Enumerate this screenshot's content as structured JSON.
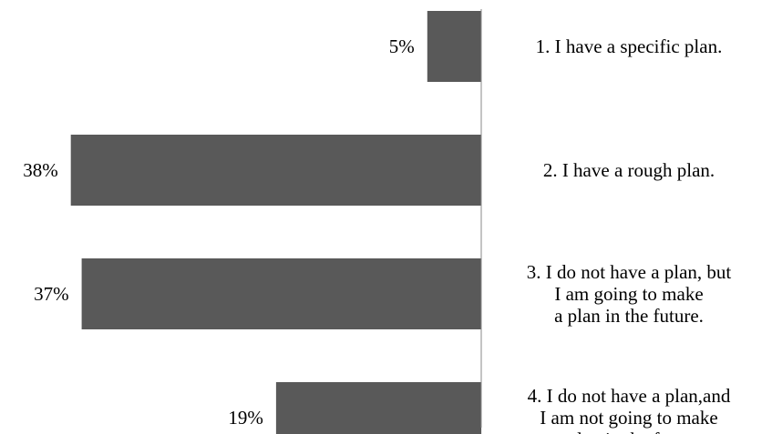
{
  "chart_data": {
    "type": "bar",
    "orientation": "horizontal",
    "categories": [
      [
        "1. I have a specific plan."
      ],
      [
        "2. I have a rough plan."
      ],
      [
        "3. I do not have a plan, but",
        "I am going to make",
        "a plan in the future."
      ],
      [
        "4. I do not have a plan,and",
        "I am not going to make",
        "a plan in the future."
      ]
    ],
    "values": [
      5,
      38,
      37,
      19
    ],
    "value_labels": [
      "5%",
      "38%",
      "37%",
      "19%"
    ],
    "unit": "%",
    "title": "",
    "xlabel": "",
    "ylabel": "",
    "xlim": [
      0,
      40
    ],
    "grid": false,
    "legend": "none",
    "bar_color": "#595959",
    "axis_color": "#888888"
  }
}
